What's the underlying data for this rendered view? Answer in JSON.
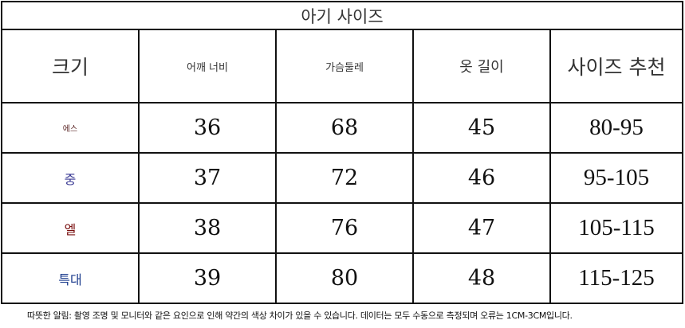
{
  "title": "아기 사이즈",
  "headers": [
    "크기",
    "어깨 너비",
    "가슴둘레",
    "옷 길이",
    "사이즈 추천"
  ],
  "rows": [
    {
      "size": "에스",
      "color": "#5a2424",
      "shoulder": "36",
      "chest": "68",
      "length": "45",
      "recommend": "80-95"
    },
    {
      "size": "중",
      "color": "#3a3a94",
      "shoulder": "37",
      "chest": "72",
      "length": "46",
      "recommend": "95-105"
    },
    {
      "size": "엘",
      "color": "#7a1010",
      "shoulder": "38",
      "chest": "76",
      "length": "47",
      "recommend": "105-115"
    },
    {
      "size": "특대",
      "color": "#1a3a8c",
      "shoulder": "39",
      "chest": "80",
      "length": "48",
      "recommend": "115-125"
    }
  ],
  "note": "따뜻한 알림: 촬영 조명 및 모니터와 같은 요인으로 인해 약간의 색상 차이가 있을 수 있습니다. 데이터는 모두 수동으로 측정되며 오류는 1CM-3CM입니다."
}
